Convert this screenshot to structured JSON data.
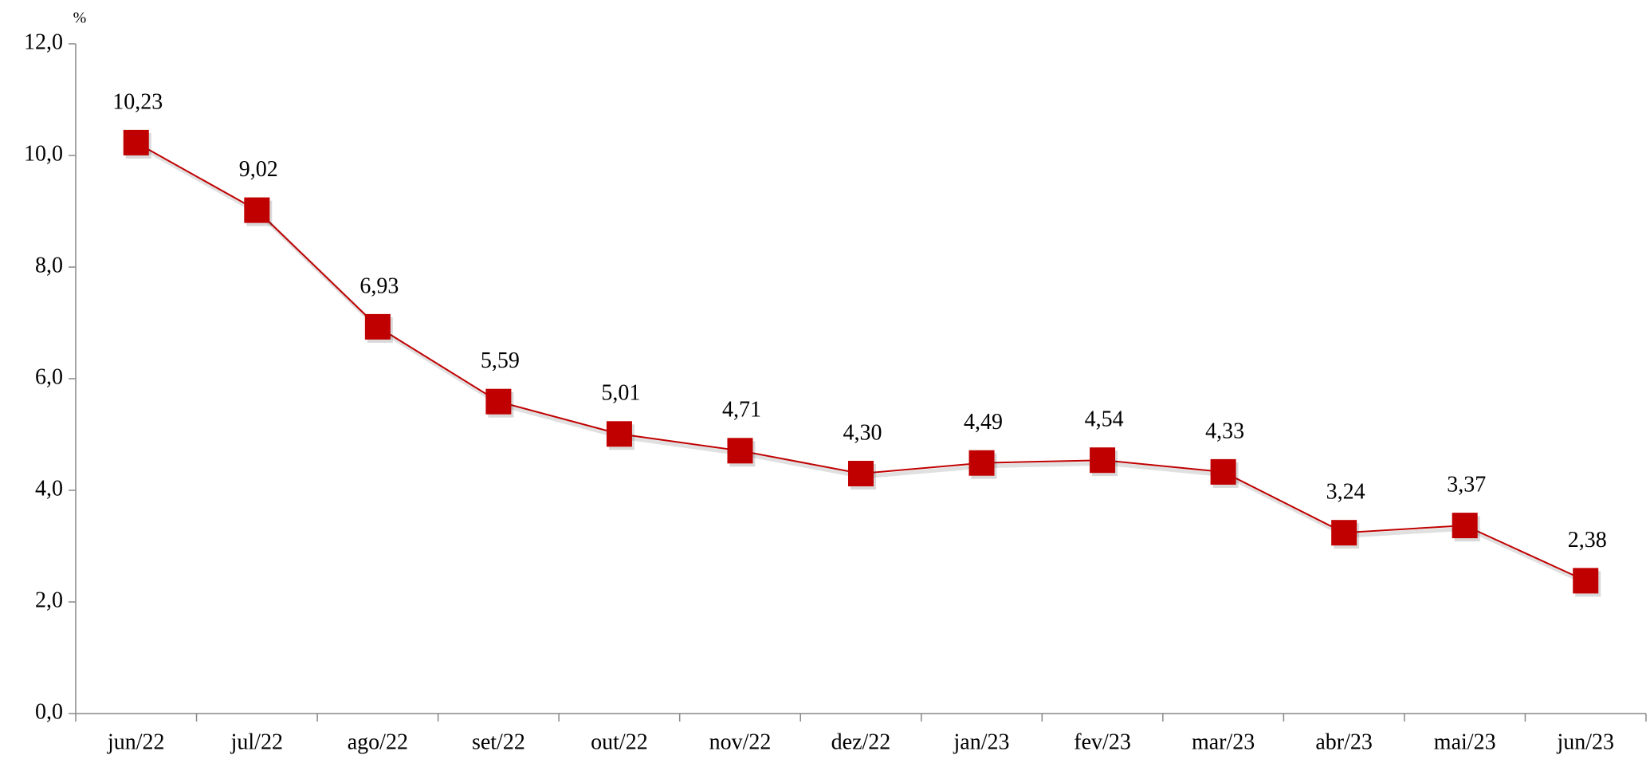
{
  "chart_data": {
    "type": "line",
    "y_label": "%",
    "categories": [
      "jun/22",
      "jul/22",
      "ago/22",
      "set/22",
      "out/22",
      "nov/22",
      "dez/22",
      "jan/23",
      "fev/23",
      "mar/23",
      "abr/23",
      "mai/23",
      "jun/23"
    ],
    "values": [
      10.23,
      9.02,
      6.93,
      5.59,
      5.01,
      4.71,
      4.3,
      4.49,
      4.54,
      4.33,
      3.24,
      3.37,
      2.38
    ],
    "value_labels": [
      "10,23",
      "9,02",
      "6,93",
      "5,59",
      "5,01",
      "4,71",
      "4,30",
      "4,49",
      "4,54",
      "4,33",
      "3,24",
      "3,37",
      "2,38"
    ],
    "color": "#c00000",
    "ylim": [
      0,
      12
    ],
    "yticks": [
      {
        "value": 0,
        "label": "0,0"
      },
      {
        "value": 2,
        "label": "2,0"
      },
      {
        "value": 4,
        "label": "4,0"
      },
      {
        "value": 6,
        "label": "6,0"
      },
      {
        "value": 8,
        "label": "8,0"
      },
      {
        "value": 10,
        "label": "10,0"
      },
      {
        "value": 12,
        "label": "12,0"
      }
    ],
    "grid": false
  }
}
